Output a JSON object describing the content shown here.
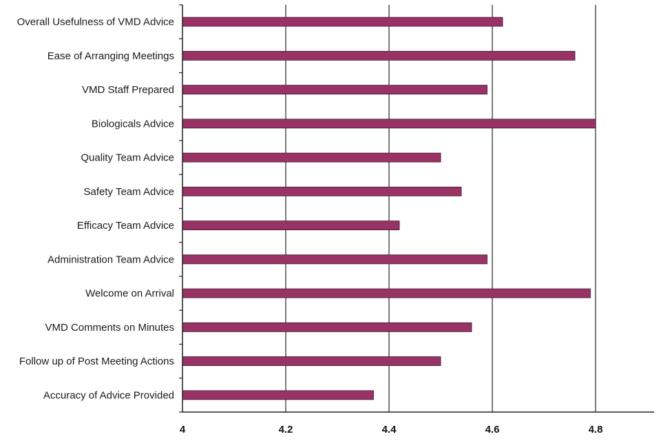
{
  "chart_data": {
    "type": "bar",
    "orientation": "horizontal",
    "categories": [
      "Overall Usefulness of VMD Advice",
      "Ease of Arranging Meetings",
      "VMD Staff Prepared",
      "Biologicals Advice",
      "Quality Team Advice",
      "Safety Team Advice",
      "Efficacy Team Advice",
      "Administration Team Advice",
      "Welcome on Arrival",
      "VMD Comments on Minutes",
      "Follow up of Post Meeting Actions",
      "Accuracy of Advice Provided"
    ],
    "values": [
      4.62,
      4.76,
      4.59,
      4.8,
      4.5,
      4.54,
      4.42,
      4.59,
      4.79,
      4.56,
      4.5,
      4.37
    ],
    "xlim": [
      4,
      4.9
    ],
    "xticks": [
      "4",
      "4.2",
      "4.4",
      "4.6",
      "4.8"
    ],
    "grid": true,
    "bar_color": "#993366",
    "title": "",
    "xlabel": "",
    "ylabel": ""
  }
}
